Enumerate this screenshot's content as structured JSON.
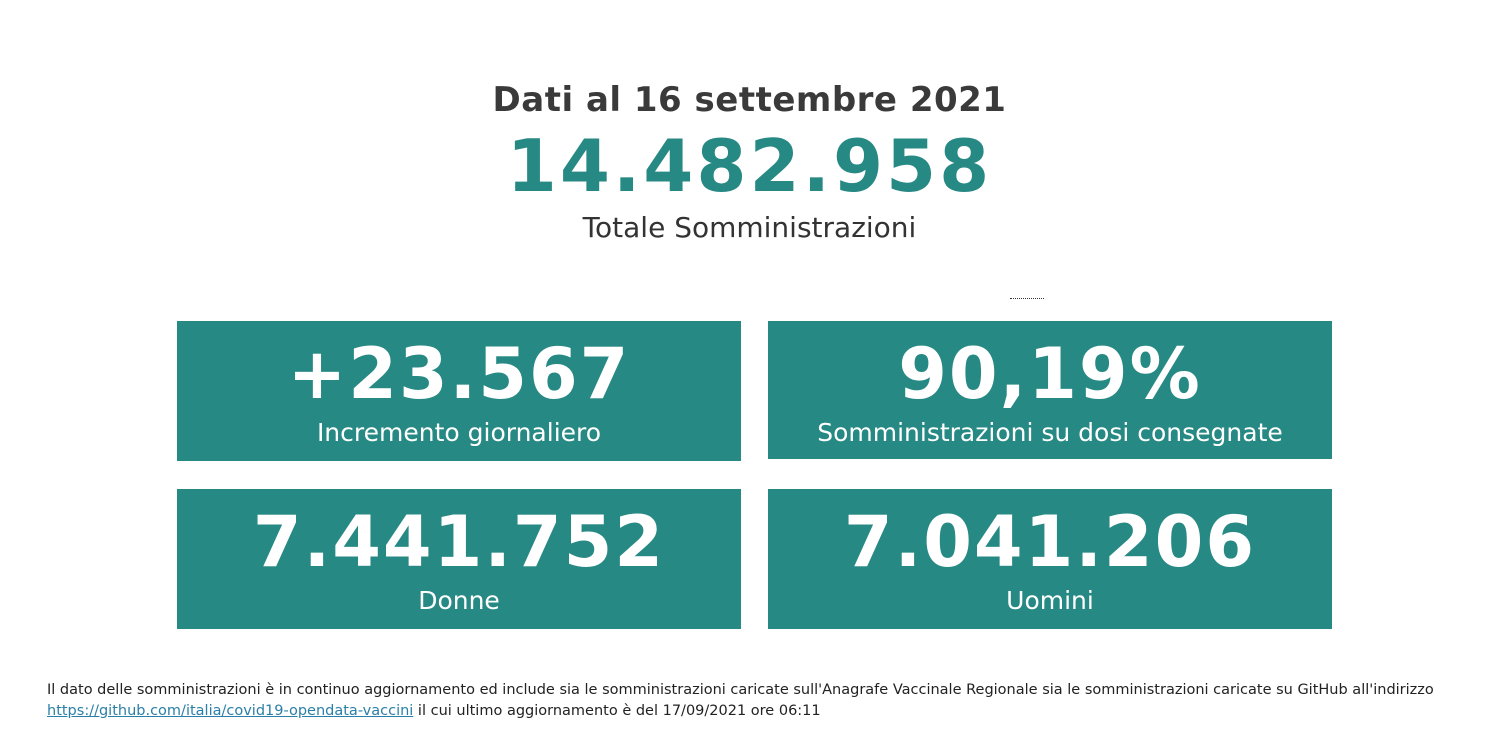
{
  "header": {
    "date_line": "Dati al 16 settembre 2021",
    "total_value": "14.482.958",
    "total_label": "Totale Somministrazioni"
  },
  "cards": [
    {
      "value": "+23.567",
      "label": "Incremento giornaliero"
    },
    {
      "value": "90,19%",
      "label": "Somministrazioni su dosi consegnate"
    },
    {
      "value": "7.441.752",
      "label": "Donne"
    },
    {
      "value": "7.041.206",
      "label": "Uomini"
    }
  ],
  "footnote": {
    "text_before": "Il dato delle somministrazioni è in continuo aggiornamento ed include sia le somministrazioni caricate sull'Anagrafe Vaccinale Regionale sia le somministrazioni caricate su GitHub all'indirizzo ",
    "link_text": "https://github.com/italia/covid19-opendata-vaccini",
    "text_after": " il cui ultimo aggiornamento è del 17/09/2021 ore 06:11"
  },
  "colors": {
    "accent": "#278984",
    "link": "#2a7fa8",
    "text": "#333333"
  }
}
